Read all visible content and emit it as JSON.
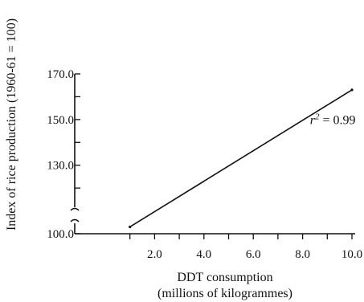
{
  "chart_data": {
    "type": "line",
    "title": "",
    "xlabel": "DDT consumption",
    "xlabel_sub": "(millions of kilogrammes)",
    "ylabel": "Index of rice production (1960-61 = 100)",
    "xlim": [
      0.0,
      10.0
    ],
    "ylim": [
      100.0,
      170.0
    ],
    "axis_break": "y",
    "x_ticks": [
      0.0,
      1.0,
      2.0,
      3.0,
      4.0,
      5.0,
      6.0,
      7.0,
      8.0,
      9.0,
      10.0
    ],
    "x_tick_labels": [
      {
        "value": 2.0,
        "label": "2.0"
      },
      {
        "value": 4.0,
        "label": "4.0"
      },
      {
        "value": 6.0,
        "label": "6.0"
      },
      {
        "value": 8.0,
        "label": "8.0"
      },
      {
        "value": 10.0,
        "label": "10.0"
      }
    ],
    "y_ticks": [
      100.0,
      110.0,
      120.0,
      130.0,
      140.0,
      150.0,
      160.0,
      170.0
    ],
    "y_tick_labels": [
      {
        "value": 100.0,
        "label": "100.0"
      },
      {
        "value": 130.0,
        "label": "130.0"
      },
      {
        "value": 150.0,
        "label": "150.0"
      },
      {
        "value": 170.0,
        "label": "170.0"
      }
    ],
    "series": [
      {
        "x": [
          1.0,
          10.0
        ],
        "y": [
          103.0,
          163.0
        ],
        "color": "#111111"
      }
    ],
    "annotation": {
      "prefix": "r",
      "superscript": "2",
      "suffix": " = 0.99",
      "x": 8.3,
      "y": 148.0
    },
    "grid": false,
    "legend": "none"
  }
}
